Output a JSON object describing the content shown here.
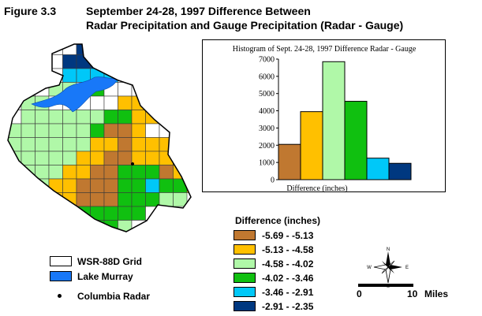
{
  "figure": {
    "number": "Figure 3.3",
    "title_line1": "September 24-28, 1997 Difference Between",
    "title_line2": "Radar Precipitation and Gauge Precipitation (Radar - Gauge)"
  },
  "colors": {
    "c1": "#C07830",
    "c2": "#FFC000",
    "c3": "#B0F8A8",
    "c4": "#10C010",
    "c5": "#00C8F8",
    "c6": "#003880",
    "grid": "#FFFFFF",
    "lake": "#1878F8",
    "outline": "#000000"
  },
  "legend": {
    "title": "Difference (inches)",
    "items": [
      {
        "label": "-5.69 - -5.13",
        "color": "#C07830"
      },
      {
        "label": "-5.13 - -4.58",
        "color": "#FFC000"
      },
      {
        "label": "-4.58 - -4.02",
        "color": "#B0F8A8"
      },
      {
        "label": "-4.02 - -3.46",
        "color": "#10C010"
      },
      {
        "label": "-3.46 - -2.91",
        "color": "#00C8F8"
      },
      {
        "label": "-2.91 - -2.35",
        "color": "#003880"
      }
    ]
  },
  "key": {
    "grid_label": "WSR-88D Grid",
    "lake_label": "Lake Murray",
    "radar_label": "Columbia Radar"
  },
  "compass": {
    "n": "N",
    "s": "S",
    "e": "E",
    "w": "W"
  },
  "scale": {
    "start": "0",
    "end": "10",
    "unit": "Miles"
  },
  "chart_data": {
    "type": "bar",
    "title": "Histogram of Sept. 24-28, 1997 Difference Radar - Gauge",
    "xlabel": "Difference (inches)",
    "ylabel": "",
    "ylim": [
      0,
      7000
    ],
    "yticks": [
      0,
      1000,
      2000,
      3000,
      4000,
      5000,
      6000,
      7000
    ],
    "categories": [
      "-5.69 - -5.13",
      "-5.13 - -4.58",
      "-4.58 - -4.02",
      "-4.02 - -3.46",
      "-3.46 - -2.91",
      "-2.91 - -2.35"
    ],
    "values": [
      2050,
      3950,
      6850,
      4550,
      1250,
      950
    ],
    "colors": [
      "#C07830",
      "#FFC000",
      "#B0F8A8",
      "#10C010",
      "#00C8F8",
      "#003880"
    ],
    "grid": false,
    "legend": "none"
  },
  "map": {
    "cols": 13,
    "rows": 14,
    "cells": [
      "......66.....",
      ".....6666....",
      ".....5555....",
      "....33.4......",
      "..33.....22...",
      "..3333334422..",
      "33333334112...",
      "3333333221222.",
      "33333322112222",
      "33333221144412",
      ".33322111445442",
      "..332211144433",
      "...32244444..",
      "....223443...."
    ]
  }
}
